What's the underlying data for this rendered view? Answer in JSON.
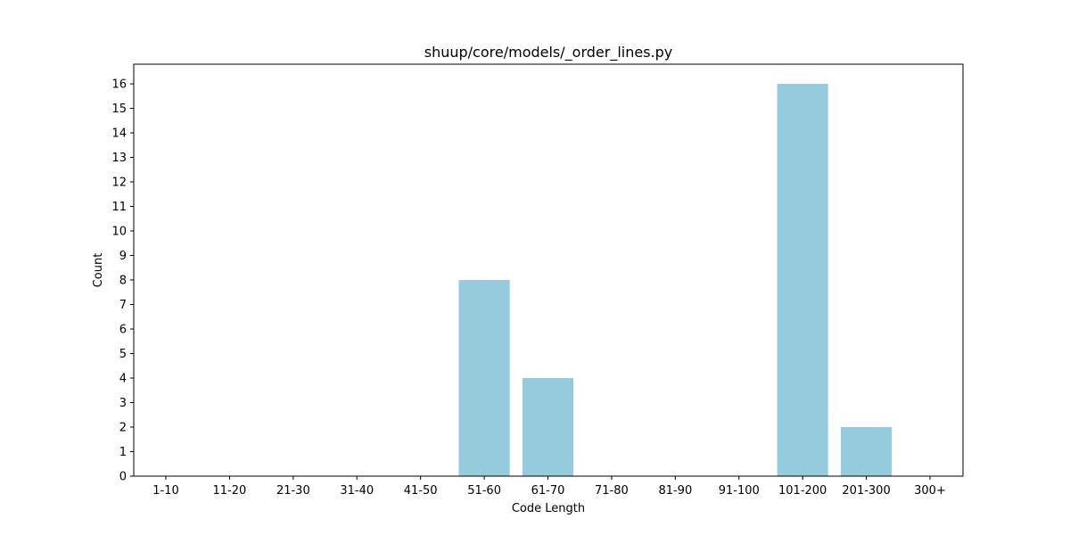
{
  "chart_data": {
    "type": "bar",
    "title": "shuup/core/models/_order_lines.py",
    "xlabel": "Code Length",
    "ylabel": "Count",
    "categories": [
      "1-10",
      "11-20",
      "21-30",
      "31-40",
      "41-50",
      "51-60",
      "61-70",
      "71-80",
      "81-90",
      "91-100",
      "101-200",
      "201-300",
      "300+"
    ],
    "values": [
      0,
      0,
      0,
      0,
      0,
      8,
      4,
      0,
      0,
      0,
      16,
      2,
      0
    ],
    "ylim": [
      0,
      16.8
    ],
    "yticks": [
      0,
      1,
      2,
      3,
      4,
      5,
      6,
      7,
      8,
      9,
      10,
      11,
      12,
      13,
      14,
      15,
      16
    ],
    "bar_color": "#96cadd",
    "grid": false,
    "legend": "none"
  }
}
